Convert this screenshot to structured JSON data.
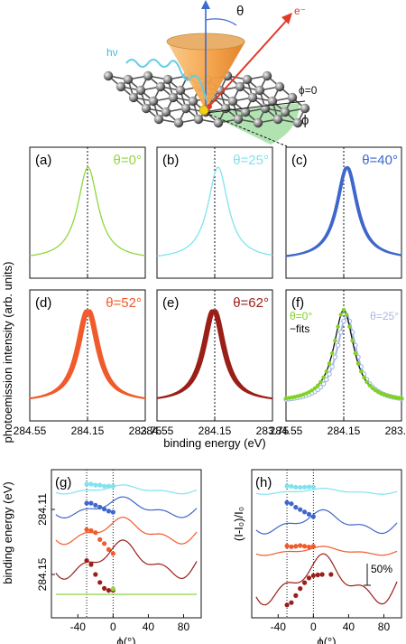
{
  "schematic": {
    "photon": "hν",
    "electron": "e⁻",
    "theta": "θ",
    "phi": "ϕ",
    "phi_zero": "ϕ=0"
  },
  "ylabel": "photoemission intensity (arb. units)",
  "xlabel": "binding energy (eV)",
  "xticks": [
    "284.55",
    "284.15",
    "283.75"
  ],
  "panels": [
    {
      "letter": "(a)",
      "angle": "θ=0°",
      "color": "#8ed83e"
    },
    {
      "letter": "(b)",
      "angle": "θ=25°",
      "color": "#7fe3ef"
    },
    {
      "letter": "(c)",
      "angle": "θ=40°",
      "color": "#3f66cc"
    },
    {
      "letter": "(d)",
      "angle": "θ=52°",
      "color": "#f15a2b"
    },
    {
      "letter": "(e)",
      "angle": "θ=62°",
      "color": "#9a1f18"
    },
    {
      "letter": "(f)",
      "angle": "",
      "color": "#000000"
    }
  ],
  "panel_f": {
    "t0": "θ=0°",
    "t25": "θ=25°",
    "fits": "−fits",
    "c0": "#7ed321",
    "c25": "#a9b9e6"
  },
  "g": {
    "letter": "(g)",
    "ylabel": "binding energy (eV)",
    "yticks": [
      "284.11",
      "284.15"
    ],
    "xticks": [
      "-40",
      "0",
      "40",
      "80"
    ],
    "xlabel": "ϕ(°)"
  },
  "h": {
    "letter": "(h)",
    "ylabel": "(I-I₀)/I₀",
    "xticks": [
      "-40",
      "0",
      "40",
      "80"
    ],
    "xlabel": "ϕ(°)",
    "scale": "50%"
  },
  "chart_data": [
    {
      "type": "line",
      "title": "(a)",
      "xlabel": "binding energy (eV)",
      "ylabel": "photoemission intensity (arb. units)",
      "xlim": [
        284.55,
        283.75
      ],
      "peak_x": 284.15,
      "series": [
        {
          "name": "θ=0°",
          "x": [
            284.55,
            284.35,
            284.25,
            284.15,
            284.05,
            283.95,
            283.75
          ],
          "y": [
            0.05,
            0.2,
            0.5,
            1.0,
            0.5,
            0.2,
            0.05
          ]
        }
      ]
    },
    {
      "type": "line",
      "title": "(b)",
      "xlim": [
        284.55,
        283.75
      ],
      "peak_x": 284.13,
      "series": [
        {
          "name": "θ=25°",
          "x": [
            284.55,
            284.33,
            284.23,
            284.13,
            284.03,
            283.93,
            283.75
          ],
          "y": [
            0.05,
            0.2,
            0.5,
            1.0,
            0.5,
            0.2,
            0.05
          ]
        }
      ]
    },
    {
      "type": "line",
      "title": "(c)",
      "xlim": [
        284.55,
        283.75
      ],
      "peak_x": 284.13,
      "series": [
        {
          "name": "θ=40°",
          "x": [
            284.55,
            284.33,
            284.23,
            284.13,
            284.03,
            283.93,
            283.75
          ],
          "y": [
            0.05,
            0.2,
            0.5,
            1.0,
            0.5,
            0.2,
            0.05
          ]
        }
      ]
    },
    {
      "type": "line",
      "title": "(d)",
      "xlim": [
        284.55,
        283.75
      ],
      "peak_x": 284.15,
      "series": [
        {
          "name": "θ=52°",
          "x": [
            284.55,
            284.35,
            284.25,
            284.15,
            284.05,
            283.95,
            283.75
          ],
          "y": [
            0.05,
            0.2,
            0.5,
            1.0,
            0.5,
            0.2,
            0.05
          ]
        }
      ]
    },
    {
      "type": "line",
      "title": "(e)",
      "xlim": [
        284.55,
        283.75
      ],
      "peak_x": 284.16,
      "series": [
        {
          "name": "θ=62°",
          "x": [
            284.55,
            284.36,
            284.26,
            284.16,
            284.06,
            283.96,
            283.75
          ],
          "y": [
            0.05,
            0.2,
            0.5,
            1.0,
            0.5,
            0.2,
            0.05
          ]
        }
      ]
    },
    {
      "type": "line",
      "title": "(f)",
      "xlim": [
        284.55,
        283.75
      ],
      "series": [
        {
          "name": "θ=0°",
          "x": [
            284.55,
            284.35,
            284.25,
            284.15,
            284.05,
            283.95,
            283.75
          ],
          "y": [
            0.05,
            0.2,
            0.5,
            1.0,
            0.5,
            0.2,
            0.05
          ]
        },
        {
          "name": "θ=25°",
          "x": [
            284.55,
            284.33,
            284.23,
            284.13,
            284.03,
            283.93,
            283.75
          ],
          "y": [
            0.05,
            0.2,
            0.5,
            0.93,
            0.5,
            0.2,
            0.05
          ]
        }
      ]
    },
    {
      "type": "line",
      "title": "(g)",
      "xlabel": "ϕ(°)",
      "ylabel": "binding energy (eV)",
      "xlim": [
        -70,
        100
      ],
      "series": [
        {
          "name": "θ=25°",
          "color": "#7fe3ef",
          "points_x": [
            -30,
            -25,
            -20,
            -15,
            -10,
            -5,
            0
          ],
          "points_y": [
            0,
            0,
            0.05,
            0.05,
            0.1,
            0.1,
            0.1
          ]
        },
        {
          "name": "θ=40°",
          "color": "#3f66cc",
          "points_x": [
            -30,
            -25,
            -20,
            -15,
            -10,
            -5,
            0
          ],
          "points_y": [
            0.05,
            0.05,
            0.15,
            0.25,
            0.35,
            0.45,
            0.5
          ]
        },
        {
          "name": "θ=52°",
          "color": "#f15a2b",
          "points_x": [
            -30,
            -25,
            -20,
            -15,
            -10,
            -5,
            0
          ],
          "points_y": [
            0.2,
            0.25,
            0.35,
            0.7,
            0.9,
            1.2,
            1.4
          ]
        },
        {
          "name": "θ=62°",
          "color": "#9a1f18",
          "points_x": [
            -30,
            -25,
            -20,
            -15,
            -10,
            -5,
            0
          ],
          "points_y": [
            0.3,
            0.5,
            1.0,
            1.4,
            1.7,
            1.8,
            1.8
          ]
        },
        {
          "name": "θ=0°",
          "color": "#8ed83e",
          "points_x": [
            0
          ],
          "points_y": [
            0
          ]
        }
      ]
    },
    {
      "type": "line",
      "title": "(h)",
      "xlabel": "ϕ(°)",
      "ylabel": "(I-I₀)/I₀",
      "xlim": [
        -70,
        100
      ],
      "series": [
        {
          "name": "θ=25°",
          "color": "#7fe3ef",
          "points_x": [
            -30,
            -25,
            -20,
            -15,
            -10,
            -5,
            0
          ],
          "points_y": [
            0,
            0.02,
            0.05,
            0.06,
            0.05,
            0.04,
            0.04
          ]
        },
        {
          "name": "θ=40°",
          "color": "#3f66cc",
          "points_x": [
            -30,
            -25,
            -20,
            -15,
            -10,
            -5,
            0
          ],
          "points_y": [
            0.6,
            0.55,
            0.4,
            0.3,
            0.2,
            0.1,
            0
          ]
        },
        {
          "name": "θ=52°",
          "color": "#f15a2b",
          "points_x": [
            -30,
            -25,
            -20,
            -15,
            -10,
            -5,
            0
          ],
          "points_y": [
            0.02,
            0.05,
            0.03,
            0,
            0.03,
            0.06,
            0.03
          ]
        },
        {
          "name": "θ=62°",
          "color": "#9a1f18",
          "points_x": [
            -30,
            -25,
            -20,
            -15,
            -10,
            -5,
            0,
            5,
            10,
            20
          ],
          "points_y": [
            1.3,
            1.2,
            0.9,
            0.6,
            0.35,
            0.15,
            0.05,
            0.02,
            0,
            0
          ]
        }
      ]
    }
  ]
}
